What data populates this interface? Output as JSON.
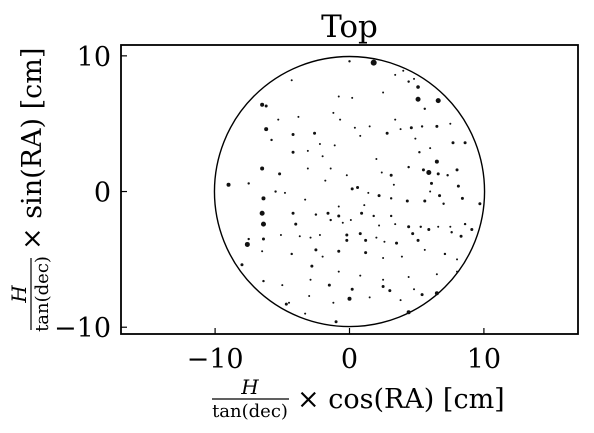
{
  "chart_data": {
    "type": "scatter",
    "title": "Top",
    "xlabel": {
      "frac_num": "H",
      "frac_den": "tan(dec)",
      "suffix": "× cos(RA) [cm]"
    },
    "ylabel": {
      "frac_num": "H",
      "frac_den": "tan(dec)",
      "suffix": "× sin(RA) [cm]"
    },
    "xlim": [
      -17,
      17
    ],
    "ylim": [
      -10.5,
      10.8
    ],
    "xticks": [
      -10,
      0,
      10
    ],
    "yticks": [
      -10,
      0,
      10
    ],
    "xtick_labels": [
      "−10",
      "0",
      "10"
    ],
    "ytick_labels": [
      "−10",
      "0",
      "10"
    ],
    "grid": false,
    "circle": {
      "center": [
        0,
        0
      ],
      "radius": 10
    },
    "marker_color": "#111111",
    "points": [
      [
        1.8,
        9.5,
        3.0
      ],
      [
        0.0,
        9.6,
        1.2
      ],
      [
        4.0,
        8.9,
        1.0
      ],
      [
        4.8,
        8.3,
        1.0
      ],
      [
        5.1,
        7.7,
        1.8
      ],
      [
        4.4,
        8.1,
        1.2
      ],
      [
        5.1,
        6.8,
        2.5
      ],
      [
        5.6,
        6.1,
        1.2
      ],
      [
        6.6,
        6.7,
        2.5
      ],
      [
        -4.3,
        8.2,
        1.0
      ],
      [
        -6.5,
        6.4,
        2.0
      ],
      [
        -6.2,
        6.3,
        1.5
      ],
      [
        -0.8,
        7.0,
        1.0
      ],
      [
        0.2,
        6.9,
        1.0
      ],
      [
        2.5,
        7.3,
        1.0
      ],
      [
        -1.2,
        5.8,
        1.0
      ],
      [
        -3.8,
        5.5,
        1.0
      ],
      [
        -5.3,
        5.3,
        1.0
      ],
      [
        -6.2,
        4.6,
        2.0
      ],
      [
        -5.8,
        3.8,
        1.2
      ],
      [
        -4.2,
        4.2,
        1.5
      ],
      [
        -2.6,
        4.3,
        1.5
      ],
      [
        -0.7,
        5.3,
        1.0
      ],
      [
        1.5,
        4.8,
        1.0
      ],
      [
        3.4,
        5.3,
        1.0
      ],
      [
        4.6,
        4.7,
        1.5
      ],
      [
        5.4,
        4.8,
        1.2
      ],
      [
        6.5,
        4.8,
        1.5
      ],
      [
        7.5,
        5.0,
        1.0
      ],
      [
        3.8,
        4.6,
        1.0
      ],
      [
        2.8,
        4.3,
        1.5
      ],
      [
        0.8,
        4.1,
        1.0
      ],
      [
        -2.2,
        3.5,
        1.0
      ],
      [
        -3.1,
        3.0,
        1.0
      ],
      [
        -4.2,
        2.9,
        1.5
      ],
      [
        -1.1,
        3.4,
        1.0
      ],
      [
        4.9,
        3.9,
        1.0
      ],
      [
        7.7,
        3.6,
        1.5
      ],
      [
        8.6,
        3.6,
        1.5
      ],
      [
        6.0,
        3.2,
        1.0
      ],
      [
        5.2,
        2.9,
        1.2
      ],
      [
        6.5,
        2.2,
        2.0
      ],
      [
        5.5,
        1.6,
        1.5
      ],
      [
        5.9,
        1.4,
        2.5
      ],
      [
        6.6,
        1.3,
        1.5
      ],
      [
        6.1,
        0.6,
        1.5
      ],
      [
        7.3,
        1.2,
        1.2
      ],
      [
        8.0,
        1.6,
        1.5
      ],
      [
        8.1,
        0.4,
        1.5
      ],
      [
        6.0,
        0.0,
        1.0
      ],
      [
        6.7,
        -0.3,
        1.5
      ],
      [
        -6.5,
        1.7,
        2.0
      ],
      [
        -5.2,
        1.3,
        1.5
      ],
      [
        -7.5,
        0.6,
        1.2
      ],
      [
        -9.0,
        0.5,
        2.0
      ],
      [
        -5.5,
        0.0,
        1.2
      ],
      [
        -6.4,
        -0.5,
        2.0
      ],
      [
        -4.8,
        -0.1,
        1.0
      ],
      [
        -3.1,
        1.7,
        1.0
      ],
      [
        -1.4,
        1.7,
        1.0
      ],
      [
        -0.2,
        1.2,
        1.0
      ],
      [
        2.4,
        1.4,
        1.0
      ],
      [
        3.1,
        1.2,
        1.5
      ],
      [
        4.4,
        1.8,
        1.2
      ],
      [
        0.2,
        0.2,
        1.5
      ],
      [
        0.6,
        0.3,
        1.5
      ],
      [
        1.4,
        -0.1,
        1.0
      ],
      [
        2.2,
        -0.3,
        1.5
      ],
      [
        3.1,
        -0.5,
        1.2
      ],
      [
        4.3,
        -0.7,
        1.5
      ],
      [
        5.6,
        -0.7,
        1.5
      ],
      [
        7.0,
        -0.9,
        1.2
      ],
      [
        8.4,
        -0.5,
        1.5
      ],
      [
        9.7,
        -0.9,
        1.5
      ],
      [
        -6.5,
        -1.6,
        2.5
      ],
      [
        -6.4,
        -2.4,
        2.5
      ],
      [
        -4.2,
        -1.6,
        1.5
      ],
      [
        -4.0,
        -2.4,
        1.5
      ],
      [
        -2.5,
        -1.7,
        1.2
      ],
      [
        -1.6,
        -1.6,
        1.5
      ],
      [
        -1.4,
        -2.1,
        1.2
      ],
      [
        -0.8,
        -1.8,
        1.5
      ],
      [
        -0.5,
        -2.3,
        1.0
      ],
      [
        0.1,
        -2.1,
        1.0
      ],
      [
        0.9,
        -1.6,
        1.5
      ],
      [
        1.8,
        -1.8,
        1.2
      ],
      [
        3.1,
        -1.8,
        1.2
      ],
      [
        2.2,
        -2.5,
        1.0
      ],
      [
        3.4,
        -2.4,
        1.0
      ],
      [
        4.4,
        -2.6,
        1.5
      ],
      [
        5.3,
        -2.6,
        1.2
      ],
      [
        5.9,
        -2.8,
        1.5
      ],
      [
        6.6,
        -2.6,
        1.0
      ],
      [
        7.5,
        -2.6,
        1.0
      ],
      [
        8.6,
        -2.4,
        1.2
      ],
      [
        9.1,
        -2.8,
        1.5
      ],
      [
        7.6,
        -3.0,
        1.2
      ],
      [
        8.3,
        -3.3,
        1.5
      ],
      [
        -7.5,
        -3.5,
        1.2
      ],
      [
        -7.6,
        -3.9,
        2.5
      ],
      [
        -6.4,
        -3.5,
        1.5
      ],
      [
        -5.1,
        -3.2,
        1.0
      ],
      [
        -3.7,
        -3.3,
        1.0
      ],
      [
        -2.9,
        -3.4,
        1.0
      ],
      [
        -2.2,
        -3.2,
        1.0
      ],
      [
        -0.2,
        -3.2,
        1.5
      ],
      [
        0.8,
        -3.1,
        1.5
      ],
      [
        -0.2,
        -3.6,
        1.5
      ],
      [
        1.2,
        -3.6,
        1.5
      ],
      [
        2.0,
        -3.4,
        1.0
      ],
      [
        2.6,
        -3.7,
        1.0
      ],
      [
        3.5,
        -3.8,
        1.5
      ],
      [
        4.7,
        -3.1,
        1.5
      ],
      [
        5.1,
        -3.6,
        1.5
      ],
      [
        -2.5,
        -4.3,
        1.5
      ],
      [
        -4.3,
        -4.6,
        1.2
      ],
      [
        -2.0,
        -4.8,
        1.0
      ],
      [
        -0.8,
        -4.4,
        1.5
      ],
      [
        1.2,
        -4.5,
        1.5
      ],
      [
        2.5,
        -4.9,
        1.0
      ],
      [
        3.9,
        -4.8,
        1.0
      ],
      [
        5.6,
        -4.3,
        1.0
      ],
      [
        -6.5,
        -4.4,
        1.0
      ],
      [
        7.1,
        -4.6,
        1.2
      ],
      [
        8.0,
        -5.0,
        1.0
      ],
      [
        -8.0,
        -5.4,
        1.5
      ],
      [
        -2.8,
        -5.5,
        1.5
      ],
      [
        -0.8,
        -5.9,
        1.0
      ],
      [
        0.8,
        -6.2,
        1.0
      ],
      [
        2.5,
        -6.5,
        1.0
      ],
      [
        4.4,
        -6.3,
        1.0
      ],
      [
        6.5,
        -6.1,
        1.0
      ],
      [
        8.0,
        -5.9,
        1.0
      ],
      [
        -6.4,
        -6.6,
        1.2
      ],
      [
        -5.0,
        -6.9,
        1.0
      ],
      [
        -2.9,
        -6.5,
        1.0
      ],
      [
        -1.5,
        -6.9,
        1.5
      ],
      [
        0.2,
        -7.2,
        1.5
      ],
      [
        2.5,
        -7.0,
        1.5
      ],
      [
        3.0,
        -7.3,
        1.5
      ],
      [
        4.8,
        -7.2,
        1.0
      ],
      [
        5.4,
        -7.6,
        1.5
      ],
      [
        6.5,
        -7.5,
        2.0
      ],
      [
        -4.5,
        -8.2,
        1.0
      ],
      [
        -3.0,
        -7.7,
        1.0
      ],
      [
        -1.2,
        -8.2,
        1.0
      ],
      [
        0.0,
        -7.9,
        2.0
      ],
      [
        1.5,
        -7.8,
        1.0
      ],
      [
        3.8,
        -8.0,
        1.0
      ],
      [
        -4.7,
        -8.3,
        1.5
      ],
      [
        -3.3,
        -9.0,
        1.0
      ],
      [
        -1.0,
        -9.6,
        1.5
      ],
      [
        4.4,
        -8.9,
        2.0
      ],
      [
        3.4,
        8.6,
        1.0
      ],
      [
        0.4,
        4.7,
        1.0
      ],
      [
        -2.0,
        2.6,
        1.0
      ],
      [
        2.0,
        2.4,
        1.0
      ],
      [
        3.3,
        0.5,
        1.0
      ],
      [
        -3.3,
        -0.6,
        1.0
      ],
      [
        -1.8,
        0.8,
        1.0
      ],
      [
        1.1,
        -1.0,
        1.0
      ],
      [
        -0.8,
        -1.1,
        1.0
      ]
    ]
  }
}
